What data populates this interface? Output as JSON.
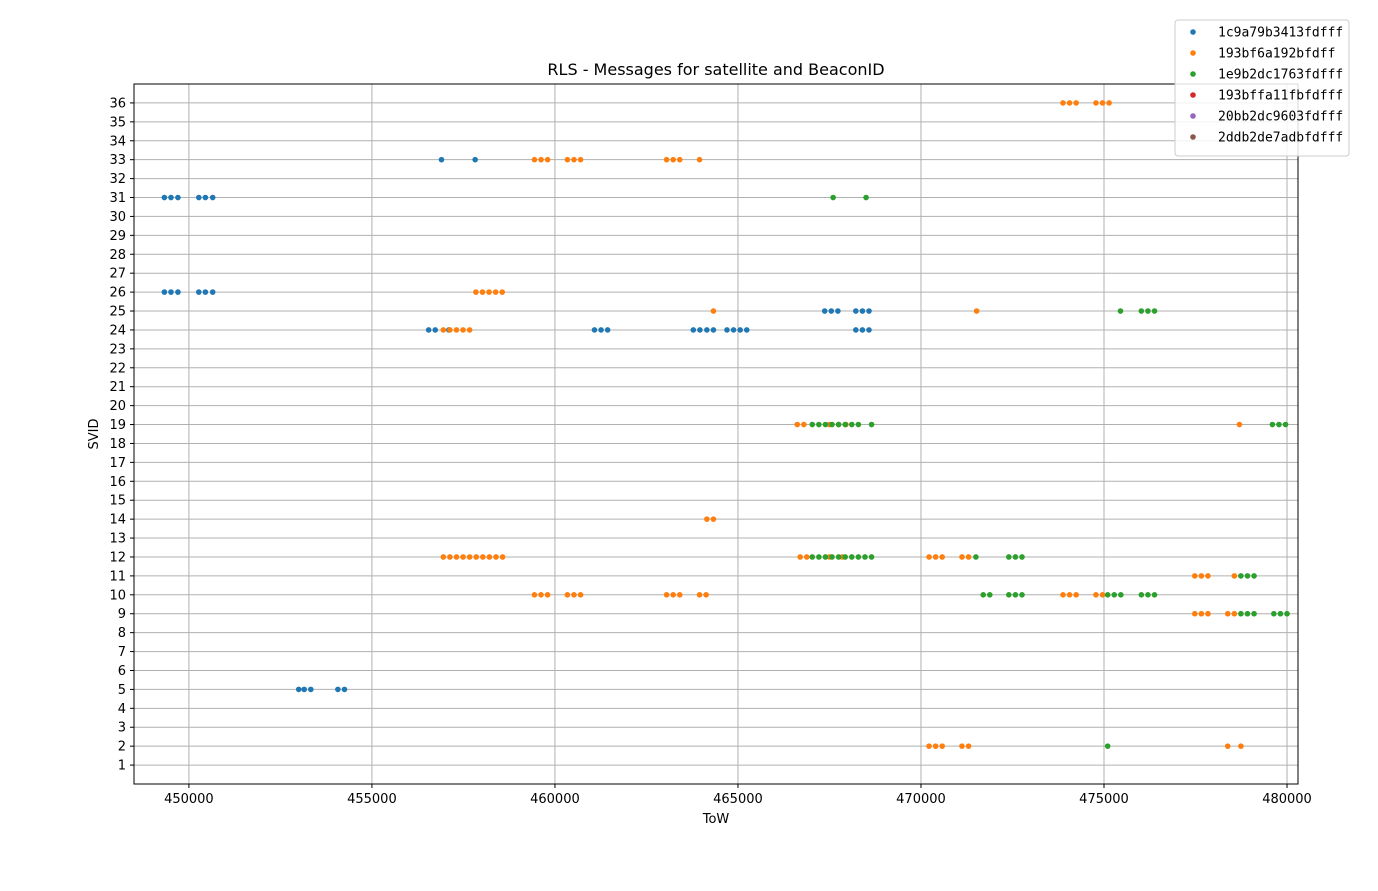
{
  "chart_data": {
    "type": "scatter",
    "title": "RLS - Messages for satellite and BeaconID",
    "xlabel": "ToW",
    "ylabel": "SVID",
    "xlim": [
      448500,
      480300
    ],
    "ylim": [
      0,
      37
    ],
    "xticks": [
      450000,
      455000,
      460000,
      465000,
      470000,
      475000,
      480000
    ],
    "xtick_labels": [
      "450000",
      "455000",
      "460000",
      "465000",
      "470000",
      "475000",
      "480000"
    ],
    "yticks": [
      1,
      2,
      3,
      4,
      5,
      6,
      7,
      8,
      9,
      10,
      11,
      12,
      13,
      14,
      15,
      16,
      17,
      18,
      19,
      20,
      21,
      22,
      23,
      24,
      25,
      26,
      27,
      28,
      29,
      30,
      31,
      32,
      33,
      34,
      35,
      36
    ],
    "ytick_labels": [
      "1",
      "2",
      "3",
      "4",
      "5",
      "6",
      "7",
      "8",
      "9",
      "10",
      "11",
      "12",
      "13",
      "14",
      "15",
      "16",
      "17",
      "18",
      "19",
      "20",
      "21",
      "22",
      "23",
      "24",
      "25",
      "26",
      "27",
      "28",
      "29",
      "30",
      "31",
      "32",
      "33",
      "34",
      "35",
      "36"
    ],
    "grid": true,
    "legend_position": "top-right, outside plot",
    "series": [
      {
        "name": "1c9a79b3413fdfff",
        "color": "#1f77b4",
        "points": [
          [
            449330,
            31
          ],
          [
            449510,
            31
          ],
          [
            449700,
            31
          ],
          [
            450270,
            31
          ],
          [
            450450,
            31
          ],
          [
            450650,
            31
          ],
          [
            449330,
            26
          ],
          [
            449510,
            26
          ],
          [
            449700,
            26
          ],
          [
            450270,
            26
          ],
          [
            450450,
            26
          ],
          [
            450650,
            26
          ],
          [
            456900,
            33
          ],
          [
            457820,
            33
          ],
          [
            456550,
            24
          ],
          [
            456730,
            24
          ],
          [
            457100,
            24
          ],
          [
            461080,
            24
          ],
          [
            461260,
            24
          ],
          [
            461440,
            24
          ],
          [
            463780,
            24
          ],
          [
            463960,
            24
          ],
          [
            464150,
            24
          ],
          [
            464330,
            24
          ],
          [
            464700,
            24
          ],
          [
            464880,
            24
          ],
          [
            465060,
            24
          ],
          [
            465240,
            24
          ],
          [
            468220,
            24
          ],
          [
            468400,
            24
          ],
          [
            468580,
            24
          ],
          [
            467370,
            25
          ],
          [
            467550,
            25
          ],
          [
            467730,
            25
          ],
          [
            468220,
            25
          ],
          [
            468400,
            25
          ],
          [
            468580,
            25
          ],
          [
            453000,
            5
          ],
          [
            453150,
            5
          ],
          [
            453330,
            5
          ],
          [
            454070,
            5
          ],
          [
            454250,
            5
          ]
        ]
      },
      {
        "name": "193bf6a192bfdff",
        "color": "#ff7f0e",
        "points": [
          [
            473880,
            36
          ],
          [
            474060,
            36
          ],
          [
            474240,
            36
          ],
          [
            474780,
            36
          ],
          [
            474960,
            36
          ],
          [
            475140,
            36
          ],
          [
            459440,
            33
          ],
          [
            459620,
            33
          ],
          [
            459800,
            33
          ],
          [
            460340,
            33
          ],
          [
            460520,
            33
          ],
          [
            460700,
            33
          ],
          [
            463050,
            33
          ],
          [
            463230,
            33
          ],
          [
            463410,
            33
          ],
          [
            463950,
            33
          ],
          [
            457840,
            26
          ],
          [
            458020,
            26
          ],
          [
            458200,
            26
          ],
          [
            458380,
            26
          ],
          [
            458560,
            26
          ],
          [
            464330,
            25
          ],
          [
            471520,
            25
          ],
          [
            456950,
            24
          ],
          [
            457130,
            24
          ],
          [
            457310,
            24
          ],
          [
            457490,
            24
          ],
          [
            457670,
            24
          ],
          [
            466620,
            19
          ],
          [
            466800,
            19
          ],
          [
            467500,
            19
          ],
          [
            467750,
            19
          ],
          [
            467950,
            19
          ],
          [
            478700,
            19
          ],
          [
            464150,
            14
          ],
          [
            464330,
            14
          ],
          [
            456950,
            12
          ],
          [
            457130,
            12
          ],
          [
            457310,
            12
          ],
          [
            457490,
            12
          ],
          [
            457670,
            12
          ],
          [
            457850,
            12
          ],
          [
            458030,
            12
          ],
          [
            458210,
            12
          ],
          [
            458390,
            12
          ],
          [
            458570,
            12
          ],
          [
            466700,
            12
          ],
          [
            466880,
            12
          ],
          [
            467500,
            12
          ],
          [
            467850,
            12
          ],
          [
            470220,
            12
          ],
          [
            470400,
            12
          ],
          [
            470580,
            12
          ],
          [
            471120,
            12
          ],
          [
            471300,
            12
          ],
          [
            477480,
            11
          ],
          [
            477660,
            11
          ],
          [
            477840,
            11
          ],
          [
            478560,
            11
          ],
          [
            459440,
            10
          ],
          [
            459620,
            10
          ],
          [
            459800,
            10
          ],
          [
            460340,
            10
          ],
          [
            460520,
            10
          ],
          [
            460700,
            10
          ],
          [
            463050,
            10
          ],
          [
            463230,
            10
          ],
          [
            463410,
            10
          ],
          [
            463950,
            10
          ],
          [
            464130,
            10
          ],
          [
            473880,
            10
          ],
          [
            474060,
            10
          ],
          [
            474240,
            10
          ],
          [
            474780,
            10
          ],
          [
            474960,
            10
          ],
          [
            477480,
            9
          ],
          [
            477660,
            9
          ],
          [
            477840,
            9
          ],
          [
            478380,
            9
          ],
          [
            478560,
            9
          ],
          [
            470220,
            2
          ],
          [
            470400,
            2
          ],
          [
            470580,
            2
          ],
          [
            471120,
            2
          ],
          [
            471300,
            2
          ],
          [
            478380,
            2
          ],
          [
            478740,
            2
          ]
        ]
      },
      {
        "name": "1e9b2dc1763fdfff",
        "color": "#2ca02c",
        "points": [
          [
            467600,
            31
          ],
          [
            468500,
            31
          ],
          [
            475450,
            25
          ],
          [
            476020,
            25
          ],
          [
            476200,
            25
          ],
          [
            476380,
            25
          ],
          [
            467030,
            19
          ],
          [
            467210,
            19
          ],
          [
            467390,
            19
          ],
          [
            467570,
            19
          ],
          [
            467750,
            19
          ],
          [
            467930,
            19
          ],
          [
            468110,
            19
          ],
          [
            468290,
            19
          ],
          [
            468650,
            19
          ],
          [
            479600,
            19
          ],
          [
            479780,
            19
          ],
          [
            479960,
            19
          ],
          [
            467030,
            12
          ],
          [
            467210,
            12
          ],
          [
            467390,
            12
          ],
          [
            467570,
            12
          ],
          [
            467750,
            12
          ],
          [
            467930,
            12
          ],
          [
            468110,
            12
          ],
          [
            468290,
            12
          ],
          [
            468470,
            12
          ],
          [
            468650,
            12
          ],
          [
            471500,
            12
          ],
          [
            472400,
            12
          ],
          [
            472580,
            12
          ],
          [
            472760,
            12
          ],
          [
            478740,
            11
          ],
          [
            478920,
            11
          ],
          [
            479100,
            11
          ],
          [
            471700,
            10
          ],
          [
            471880,
            10
          ],
          [
            472400,
            10
          ],
          [
            472580,
            10
          ],
          [
            472760,
            10
          ],
          [
            475100,
            10
          ],
          [
            475280,
            10
          ],
          [
            475460,
            10
          ],
          [
            476020,
            10
          ],
          [
            476200,
            10
          ],
          [
            476380,
            10
          ],
          [
            478740,
            9
          ],
          [
            478920,
            9
          ],
          [
            479100,
            9
          ],
          [
            479640,
            9
          ],
          [
            479820,
            9
          ],
          [
            480000,
            9
          ],
          [
            475100,
            2
          ]
        ]
      },
      {
        "name": "193bffa11fbfdfff",
        "color": "#d62728",
        "points": []
      },
      {
        "name": "20bb2dc9603fdfff",
        "color": "#9467bd",
        "points": []
      },
      {
        "name": "2ddb2de7adbfdfff",
        "color": "#8c564b",
        "points": []
      }
    ]
  }
}
